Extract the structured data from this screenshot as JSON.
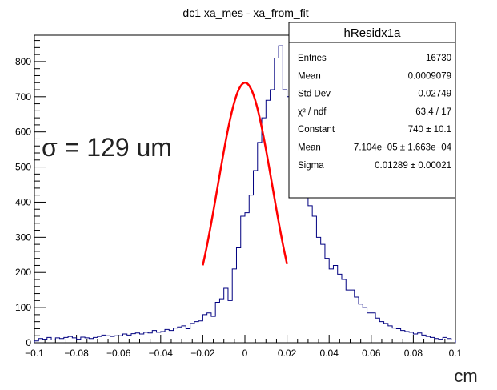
{
  "chart_data": {
    "type": "bar",
    "title": "dc1 xa_mes - xa_from_fit",
    "xlabel": "cm",
    "ylabel": "",
    "xlim": [
      -0.1,
      0.1
    ],
    "ylim": [
      0,
      875
    ],
    "x_ticks": [
      "−0.1",
      "−0.08",
      "−0.06",
      "−0.04",
      "−0.02",
      "0",
      "0.02",
      "0.04",
      "0.06",
      "0.08",
      "0.1"
    ],
    "x_tick_values": [
      -0.1,
      -0.08,
      -0.06,
      -0.04,
      -0.02,
      0,
      0.02,
      0.04,
      0.06,
      0.08,
      0.1
    ],
    "y_ticks": [
      "0",
      "100",
      "200",
      "300",
      "400",
      "500",
      "600",
      "700",
      "800"
    ],
    "y_tick_values": [
      0,
      100,
      200,
      300,
      400,
      500,
      600,
      700,
      800
    ],
    "histogram": {
      "color": "#000080",
      "bin_low": -0.1,
      "bin_width": 0.002,
      "counts": [
        5,
        12,
        10,
        15,
        8,
        14,
        12,
        15,
        18,
        14,
        10,
        16,
        14,
        12,
        15,
        18,
        22,
        20,
        18,
        20,
        20,
        25,
        22,
        26,
        28,
        25,
        30,
        28,
        35,
        30,
        32,
        38,
        35,
        42,
        45,
        48,
        40,
        55,
        60,
        62,
        80,
        85,
        75,
        115,
        125,
        155,
        120,
        210,
        270,
        360,
        370,
        420,
        490,
        570,
        640,
        690,
        720,
        810,
        845,
        720,
        700,
        640,
        600,
        480,
        440,
        390,
        360,
        300,
        280,
        240,
        210,
        220,
        195,
        180,
        150,
        150,
        130,
        110,
        100,
        85,
        85,
        70,
        60,
        55,
        48,
        42,
        40,
        35,
        32,
        30,
        25,
        28,
        22,
        18,
        15,
        12,
        10,
        15,
        12,
        8
      ]
    },
    "fit": {
      "type": "gaussian",
      "color": "#ff0000",
      "constant": 740,
      "mean": 7.104e-05,
      "sigma": 0.01289,
      "x_range": [
        -0.02,
        0.02
      ]
    },
    "annotations": {
      "sigma_label": "σ = 129 um",
      "unit_label": "cm"
    },
    "stats_box": {
      "title": "hResidx1a",
      "rows": [
        {
          "label": "Entries",
          "value": "16730"
        },
        {
          "label": "Mean",
          "value": "0.0009079"
        },
        {
          "label": "Std Dev",
          "value": "0.02749"
        },
        {
          "label": "χ² / ndf",
          "value": "63.4 / 17"
        },
        {
          "label": "Constant",
          "value": "740 ± 10.1"
        },
        {
          "label": "Mean",
          "value": "7.104e−05 ± 1.663e−04"
        },
        {
          "label": "Sigma",
          "value": "0.01289 ± 0.00021"
        }
      ]
    },
    "grid": false,
    "legend": "none"
  }
}
